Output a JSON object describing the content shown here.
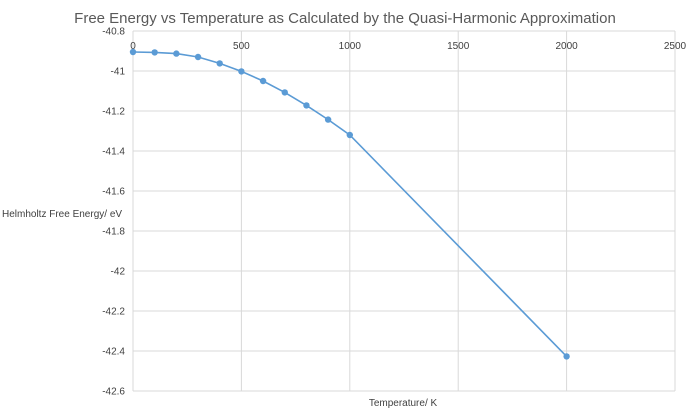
{
  "chart_data": {
    "type": "scatter",
    "title": "Free Energy vs Temperature as Calculated by the Quasi-Harmonic Approximation",
    "xlabel": "Temperature/ K",
    "ylabel": "Helmholtz Free Energy/ eV",
    "xlim": [
      0,
      2500
    ],
    "ylim": [
      -42.6,
      -40.8
    ],
    "x_ticks": [
      "0",
      "500",
      "1000",
      "1500",
      "2000",
      "2500"
    ],
    "y_ticks": [
      "-40.8",
      "-41",
      "-41.2",
      "-41.4",
      "-41.6",
      "-41.8",
      "-42",
      "-42.2",
      "-42.4",
      "-42.6"
    ],
    "grid": true,
    "legend": "none",
    "series": [
      {
        "name": "Free Energy",
        "color": "#5b9bd5",
        "x": [
          0,
          100,
          200,
          300,
          400,
          500,
          600,
          700,
          800,
          900,
          1000,
          2000
        ],
        "y": [
          -40.905,
          -40.907,
          -40.913,
          -40.93,
          -40.962,
          -41.002,
          -41.05,
          -41.107,
          -41.172,
          -41.243,
          -41.32,
          -42.427
        ]
      }
    ]
  }
}
